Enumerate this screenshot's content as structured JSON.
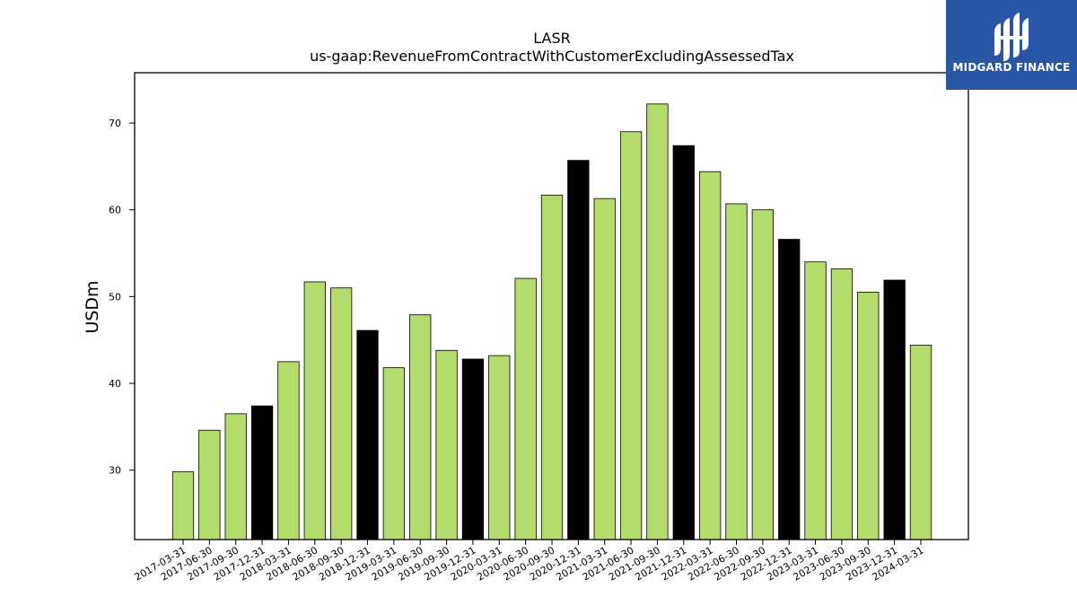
{
  "chart_data": {
    "type": "bar",
    "title": "LASR",
    "subtitle": "us-gaap:RevenueFromContractWithCustomerExcludingAssessedTax",
    "xlabel": "",
    "ylabel": "USDm",
    "ylim": [
      22,
      75.8
    ],
    "yticks": [
      30,
      40,
      50,
      60,
      70
    ],
    "categories": [
      "2017-03-31",
      "2017-06-30",
      "2017-09-30",
      "2017-12-31",
      "2018-03-31",
      "2018-06-30",
      "2018-09-30",
      "2018-12-31",
      "2019-03-31",
      "2019-06-30",
      "2019-09-30",
      "2019-12-31",
      "2020-03-31",
      "2020-06-30",
      "2020-09-30",
      "2020-12-31",
      "2021-03-31",
      "2021-06-30",
      "2021-09-30",
      "2021-12-31",
      "2022-03-31",
      "2022-06-30",
      "2022-09-30",
      "2022-12-31",
      "2023-03-31",
      "2023-06-30",
      "2023-09-30",
      "2023-12-31",
      "2024-03-31"
    ],
    "values": [
      29.8,
      34.6,
      36.5,
      37.4,
      42.5,
      51.7,
      51.0,
      46.1,
      41.8,
      47.9,
      43.8,
      42.8,
      43.2,
      52.1,
      61.7,
      65.7,
      61.3,
      69.0,
      72.2,
      67.4,
      64.4,
      60.7,
      60.0,
      56.6,
      54.0,
      53.2,
      50.5,
      51.9,
      44.4
    ],
    "bar_colors": [
      "#b3dc6c",
      "#b3dc6c",
      "#b3dc6c",
      "#000000",
      "#b3dc6c",
      "#b3dc6c",
      "#b3dc6c",
      "#000000",
      "#b3dc6c",
      "#b3dc6c",
      "#b3dc6c",
      "#000000",
      "#b3dc6c",
      "#b3dc6c",
      "#b3dc6c",
      "#000000",
      "#b3dc6c",
      "#b3dc6c",
      "#b3dc6c",
      "#000000",
      "#b3dc6c",
      "#b3dc6c",
      "#b3dc6c",
      "#000000",
      "#b3dc6c",
      "#b3dc6c",
      "#b3dc6c",
      "#000000",
      "#b3dc6c"
    ],
    "grid": false,
    "legend": "none"
  },
  "logo": {
    "text": "MIDGARD FINANCE",
    "background": "#2a56a8",
    "icon": "midgard-logo-icon"
  }
}
